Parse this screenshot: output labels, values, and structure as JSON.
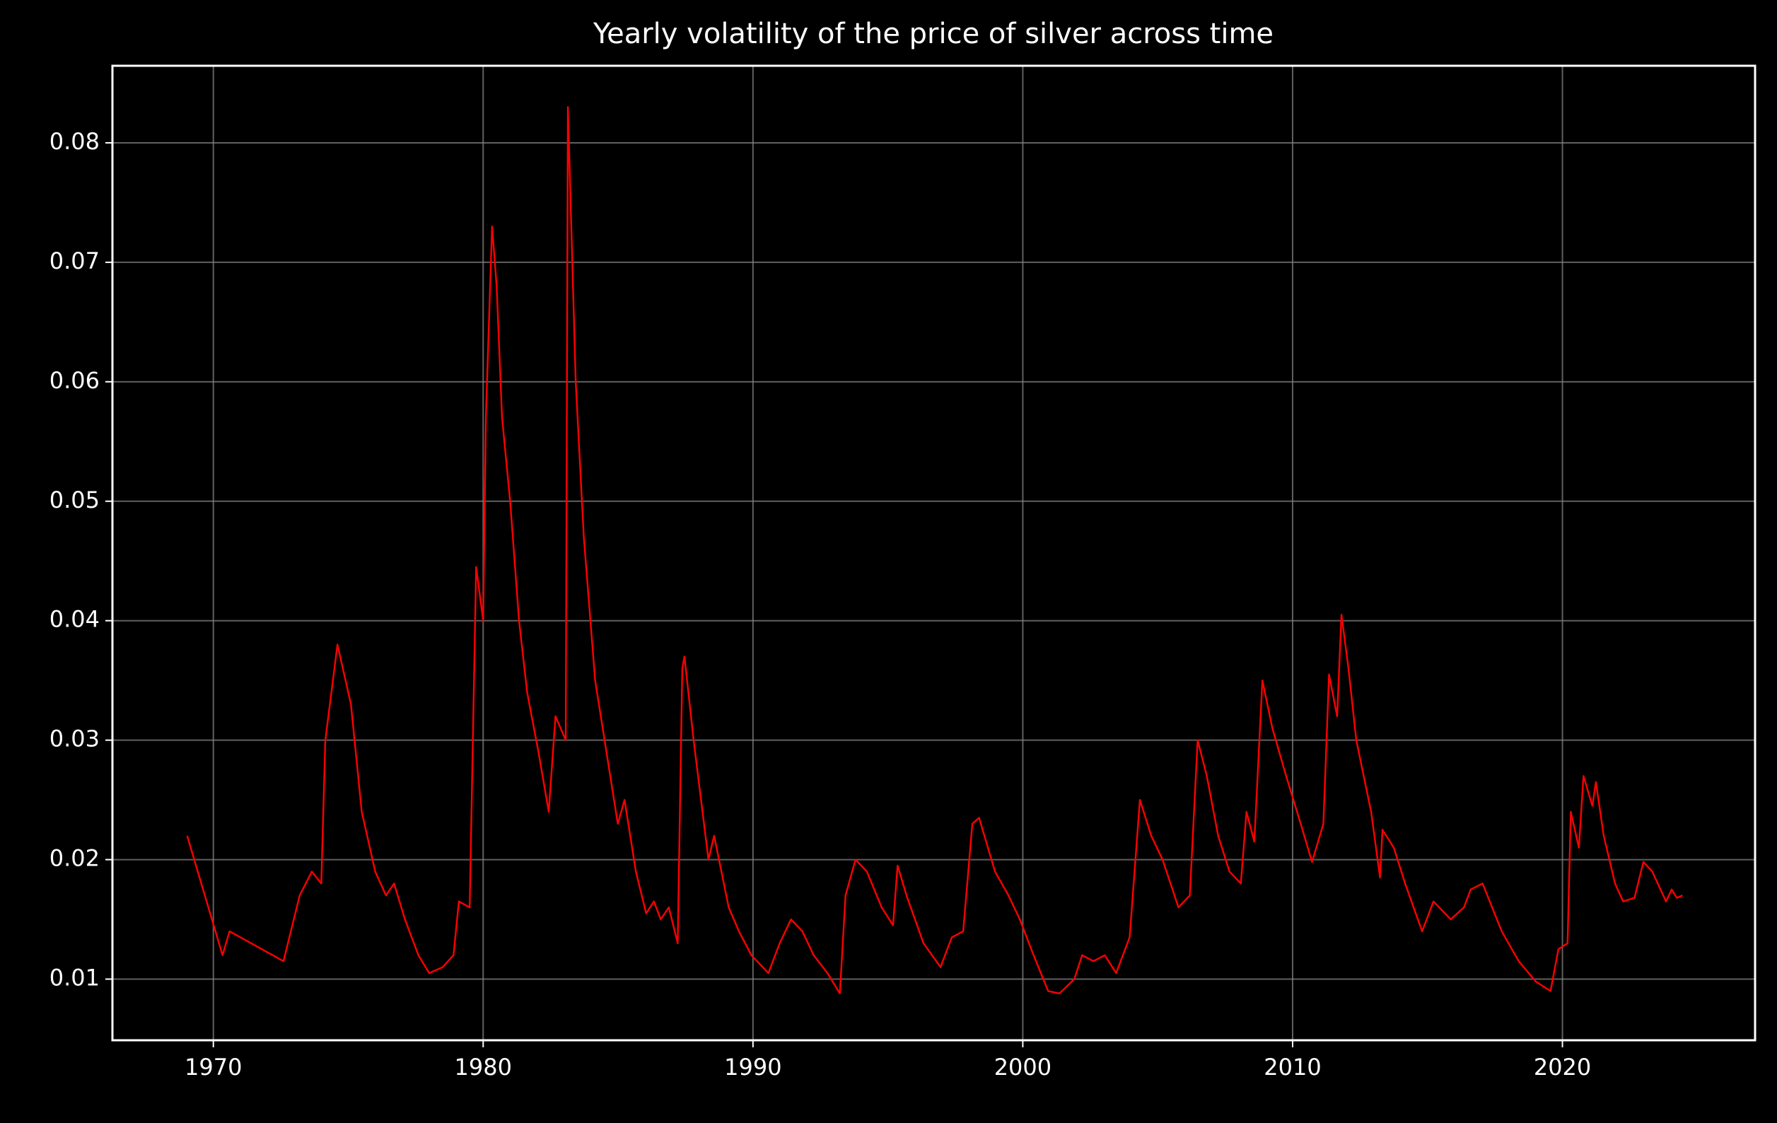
{
  "chart_data": {
    "type": "line",
    "title": "Yearly volatility of the price of silver across time",
    "x": [
      1969.03,
      1970.34,
      1970.6,
      1971.4,
      1972.6,
      1973.2,
      1973.65,
      1974.0,
      1974.15,
      1974.6,
      1975.1,
      1975.5,
      1976.0,
      1976.4,
      1976.7,
      1977.1,
      1977.6,
      1978.0,
      1978.5,
      1978.9,
      1979.1,
      1979.5,
      1979.74,
      1980.0,
      1980.1,
      1980.33,
      1980.5,
      1980.7,
      1981.0,
      1981.33,
      1981.63,
      1982.05,
      1982.43,
      1982.68,
      1983.06,
      1983.14,
      1983.43,
      1983.73,
      1984.15,
      1984.57,
      1984.99,
      1985.24,
      1985.66,
      1986.04,
      1986.33,
      1986.58,
      1986.88,
      1987.21,
      1987.38,
      1987.46,
      1987.8,
      1988.35,
      1988.56,
      1989.1,
      1989.48,
      1989.94,
      1990.57,
      1990.99,
      1991.41,
      1991.83,
      1992.25,
      1992.76,
      1993.22,
      1993.43,
      1993.8,
      1994.22,
      1994.77,
      1995.19,
      1995.36,
      1995.69,
      1996.32,
      1996.95,
      1997.37,
      1997.79,
      1998.13,
      1998.38,
      1998.97,
      1999.47,
      1999.89,
      2000.4,
      2000.94,
      2001.36,
      2001.91,
      2002.2,
      2002.62,
      2003.04,
      2003.46,
      2003.96,
      2004.34,
      2004.76,
      2005.18,
      2005.77,
      2006.19,
      2006.48,
      2006.82,
      2007.24,
      2007.66,
      2008.08,
      2008.29,
      2008.58,
      2008.88,
      2009.25,
      2009.76,
      2010.3,
      2010.72,
      2011.14,
      2011.35,
      2011.65,
      2011.81,
      2012.07,
      2012.36,
      2012.91,
      2013.24,
      2013.33,
      2013.75,
      2014.17,
      2014.8,
      2015.22,
      2015.86,
      2016.35,
      2016.6,
      2017.04,
      2017.75,
      2018.38,
      2019.01,
      2019.56,
      2019.85,
      2020.19,
      2020.31,
      2020.61,
      2020.78,
      2021.11,
      2021.24,
      2021.53,
      2021.95,
      2022.25,
      2022.67,
      2023.0,
      2023.33,
      2023.84,
      2024.05,
      2024.24,
      2024.45
    ],
    "values": [
      0.022,
      0.012,
      0.014,
      0.013,
      0.0115,
      0.017,
      0.019,
      0.018,
      0.03,
      0.038,
      0.033,
      0.024,
      0.019,
      0.017,
      0.018,
      0.015,
      0.012,
      0.0105,
      0.011,
      0.012,
      0.0165,
      0.016,
      0.0445,
      0.04,
      0.057,
      0.073,
      0.068,
      0.057,
      0.05,
      0.04,
      0.034,
      0.029,
      0.024,
      0.032,
      0.03,
      0.083,
      0.06,
      0.047,
      0.035,
      0.029,
      0.023,
      0.025,
      0.019,
      0.0155,
      0.0165,
      0.015,
      0.016,
      0.013,
      0.036,
      0.037,
      0.03,
      0.02,
      0.022,
      0.016,
      0.014,
      0.012,
      0.0105,
      0.013,
      0.015,
      0.014,
      0.012,
      0.0105,
      0.0088,
      0.017,
      0.02,
      0.019,
      0.016,
      0.0145,
      0.0195,
      0.017,
      0.013,
      0.011,
      0.0135,
      0.014,
      0.023,
      0.0235,
      0.019,
      0.017,
      0.015,
      0.012,
      0.009,
      0.0088,
      0.01,
      0.012,
      0.0115,
      0.012,
      0.0105,
      0.0135,
      0.025,
      0.022,
      0.02,
      0.016,
      0.017,
      0.03,
      0.027,
      0.022,
      0.019,
      0.018,
      0.024,
      0.0215,
      0.035,
      0.031,
      0.027,
      0.023,
      0.0198,
      0.023,
      0.0355,
      0.032,
      0.0405,
      0.036,
      0.03,
      0.024,
      0.0185,
      0.0225,
      0.021,
      0.018,
      0.014,
      0.0165,
      0.015,
      0.016,
      0.0175,
      0.018,
      0.014,
      0.0115,
      0.0098,
      0.009,
      0.0125,
      0.013,
      0.024,
      0.021,
      0.027,
      0.0245,
      0.0265,
      0.022,
      0.018,
      0.0165,
      0.0168,
      0.0198,
      0.019,
      0.0165,
      0.0175,
      0.0168,
      0.017
    ],
    "color": "#ff0000",
    "xlim": [
      1966.26,
      2027.14
    ],
    "ylim": [
      0.00488,
      0.08645
    ],
    "xticks": [
      1970,
      1980,
      1990,
      2000,
      2010,
      2020
    ],
    "yticks": [
      0.01,
      0.02,
      0.03,
      0.04,
      0.05,
      0.06,
      0.07,
      0.08
    ],
    "grid": true
  }
}
